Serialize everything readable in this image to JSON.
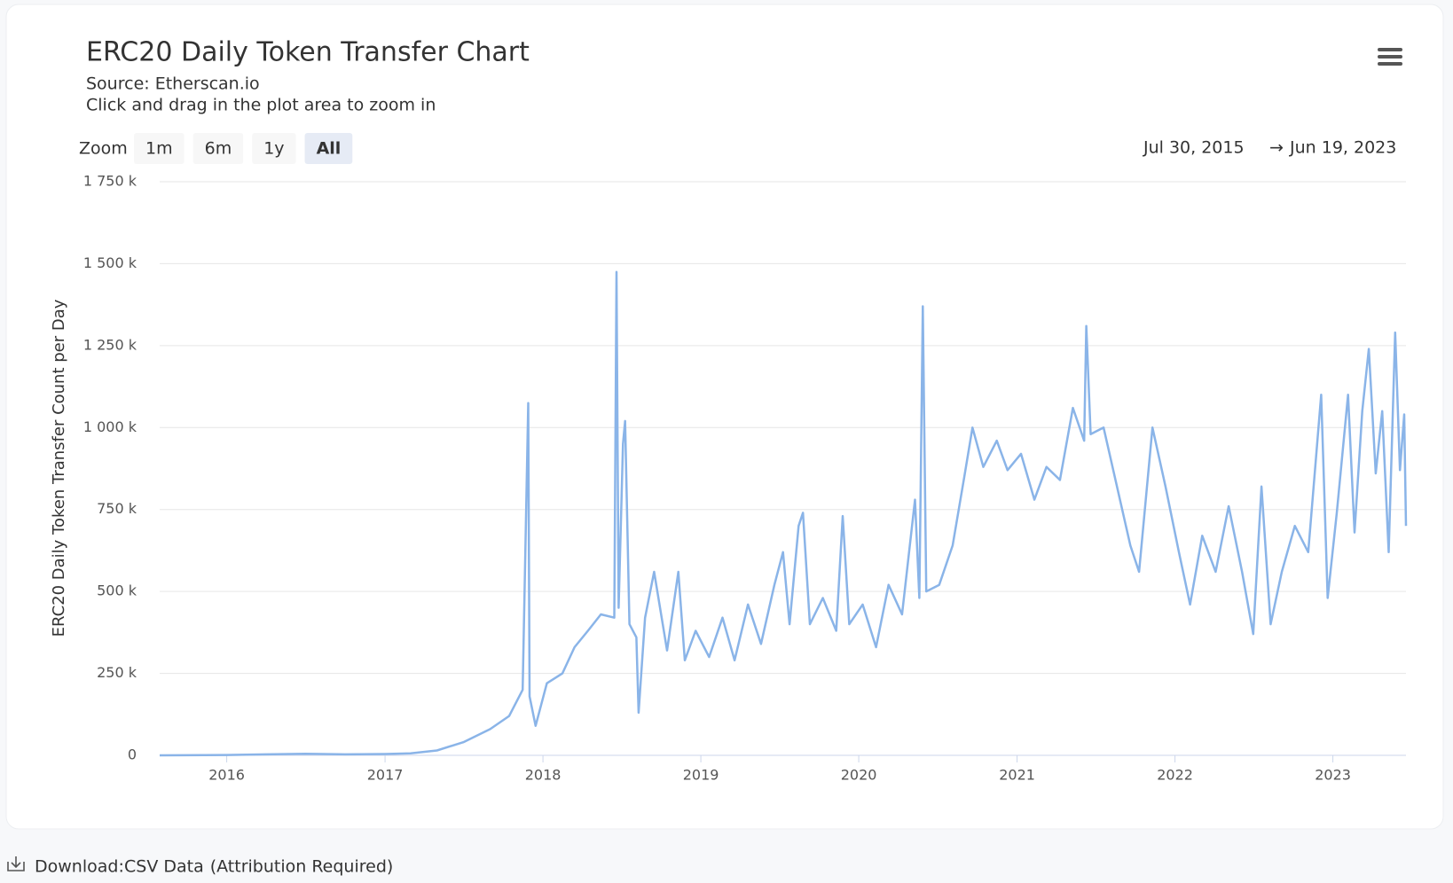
{
  "page": {
    "download_label": "Download:",
    "download_link": "CSV Data",
    "download_note": "(Attribution Required)"
  },
  "chart_data": {
    "type": "line",
    "title": "ERC20 Daily Token Transfer Chart",
    "subtitle": "Source: Etherscan.io",
    "instruction": "Click and drag in the plot area to zoom in",
    "zoom_label": "Zoom",
    "zoom_buttons": [
      "1m",
      "6m",
      "1y",
      "All"
    ],
    "active_zoom": "All",
    "range_start": "Jul 30, 2015",
    "range_separator": "→",
    "range_end": "Jun 19, 2023",
    "y_label": "ERC20 Daily Token Transfer Count per Day",
    "color": "#8ab4e8",
    "grid": true,
    "xlim": [
      "2015-07-30",
      "2023-06-19"
    ],
    "xticks": [
      {
        "value": "2016-01-01",
        "label": "2016"
      },
      {
        "value": "2017-01-01",
        "label": "2017"
      },
      {
        "value": "2018-01-01",
        "label": "2018"
      },
      {
        "value": "2019-01-01",
        "label": "2019"
      },
      {
        "value": "2020-01-01",
        "label": "2020"
      },
      {
        "value": "2021-01-01",
        "label": "2021"
      },
      {
        "value": "2022-01-01",
        "label": "2022"
      },
      {
        "value": "2023-01-01",
        "label": "2023"
      }
    ],
    "ylim": [
      0,
      1750000
    ],
    "yticks": [
      0,
      {
        "value": 250000,
        "label": "250 k"
      },
      {
        "value": 500000,
        "label": "500 k"
      },
      {
        "value": 750000,
        "label": "750 k"
      },
      {
        "value": 1000000,
        "label": "1 000 k"
      },
      {
        "value": 1250000,
        "label": "1 250 k"
      },
      {
        "value": 1500000,
        "label": "1 500 k"
      },
      {
        "value": 1750000,
        "label": "1 750 k"
      }
    ],
    "x": [
      "2015-07-30",
      "2016-01-01",
      "2016-04-01",
      "2016-07-01",
      "2016-10-01",
      "2017-01-01",
      "2017-03-01",
      "2017-05-01",
      "2017-07-01",
      "2017-09-01",
      "2017-10-15",
      "2017-11-15",
      "2017-11-28",
      "2017-12-01",
      "2017-12-15",
      "2018-01-10",
      "2018-02-15",
      "2018-03-15",
      "2018-04-15",
      "2018-05-15",
      "2018-06-15",
      "2018-06-20",
      "2018-06-25",
      "2018-07-05",
      "2018-07-10",
      "2018-07-20",
      "2018-08-05",
      "2018-08-10",
      "2018-08-25",
      "2018-09-15",
      "2018-10-15",
      "2018-11-10",
      "2018-11-25",
      "2018-12-20",
      "2019-01-20",
      "2019-02-20",
      "2019-03-20",
      "2019-04-20",
      "2019-05-20",
      "2019-06-20",
      "2019-07-10",
      "2019-07-25",
      "2019-08-15",
      "2019-08-25",
      "2019-09-10",
      "2019-10-10",
      "2019-11-10",
      "2019-11-25",
      "2019-12-10",
      "2020-01-10",
      "2020-02-10",
      "2020-03-10",
      "2020-04-10",
      "2020-05-10",
      "2020-05-20",
      "2020-05-28",
      "2020-06-05",
      "2020-07-05",
      "2020-08-05",
      "2020-09-01",
      "2020-09-20",
      "2020-10-15",
      "2020-11-15",
      "2020-12-10",
      "2021-01-10",
      "2021-02-10",
      "2021-03-10",
      "2021-04-10",
      "2021-05-10",
      "2021-06-05",
      "2021-06-10",
      "2021-06-20",
      "2021-07-20",
      "2021-08-20",
      "2021-09-20",
      "2021-10-10",
      "2021-11-10",
      "2021-12-10",
      "2022-01-10",
      "2022-02-05",
      "2022-03-05",
      "2022-04-05",
      "2022-05-05",
      "2022-06-05",
      "2022-07-01",
      "2022-07-20",
      "2022-08-10",
      "2022-09-05",
      "2022-10-05",
      "2022-11-05",
      "2022-12-05",
      "2022-12-20",
      "2023-01-10",
      "2023-02-05",
      "2023-02-20",
      "2023-03-10",
      "2023-03-25",
      "2023-04-10",
      "2023-04-25",
      "2023-05-10",
      "2023-05-25",
      "2023-06-05",
      "2023-06-15",
      "2023-06-19"
    ],
    "values": [
      0,
      1000,
      3000,
      5000,
      3000,
      4000,
      6000,
      15000,
      40000,
      80000,
      120000,
      200000,
      1075000,
      180000,
      90000,
      220000,
      250000,
      330000,
      380000,
      430000,
      420000,
      1475000,
      450000,
      950000,
      1020000,
      400000,
      360000,
      130000,
      420000,
      560000,
      320000,
      560000,
      290000,
      380000,
      300000,
      420000,
      290000,
      460000,
      340000,
      520000,
      620000,
      400000,
      700000,
      740000,
      400000,
      480000,
      380000,
      730000,
      400000,
      460000,
      330000,
      520000,
      430000,
      780000,
      480000,
      1370000,
      500000,
      520000,
      640000,
      850000,
      1000000,
      880000,
      960000,
      870000,
      920000,
      780000,
      880000,
      840000,
      1060000,
      960000,
      1310000,
      980000,
      1000000,
      820000,
      640000,
      560000,
      1000000,
      820000,
      620000,
      460000,
      670000,
      560000,
      760000,
      560000,
      370000,
      820000,
      400000,
      560000,
      700000,
      620000,
      1100000,
      480000,
      740000,
      1100000,
      680000,
      1050000,
      1240000,
      860000,
      1050000,
      620000,
      1290000,
      870000,
      1040000,
      700000
    ]
  }
}
